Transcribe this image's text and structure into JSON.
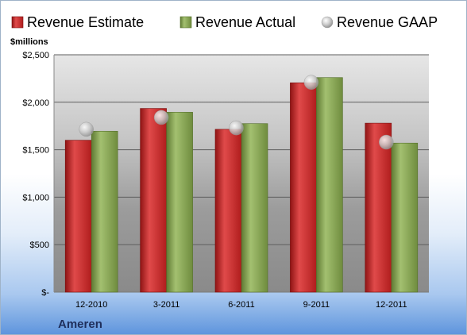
{
  "chart_data": {
    "type": "bar",
    "company": "Ameren",
    "ylabel": "$millions",
    "categories": [
      "12-2010",
      "3-2011",
      "6-2011",
      "9-2011",
      "12-2011"
    ],
    "ylim": [
      0,
      2500
    ],
    "yticks": [
      0,
      500,
      1000,
      1500,
      2000,
      2500
    ],
    "ytick_labels": [
      "$-",
      "$500",
      "$1,000",
      "$1,500",
      "$2,000",
      "$2,500"
    ],
    "grid": true,
    "legend_position": "top",
    "series": [
      {
        "name": "Revenue Estimate",
        "kind": "bar",
        "color": "#cc2a2a",
        "values": [
          1600,
          1935,
          1715,
          2205,
          1780
        ]
      },
      {
        "name": "Revenue Actual",
        "kind": "bar",
        "color": "#8aa95a",
        "values": [
          1695,
          1895,
          1775,
          2260,
          1570
        ]
      },
      {
        "name": "Revenue GAAP",
        "kind": "marker",
        "color": "#b9b9b9",
        "values": [
          1715,
          1840,
          1730,
          2210,
          1580
        ]
      }
    ]
  }
}
